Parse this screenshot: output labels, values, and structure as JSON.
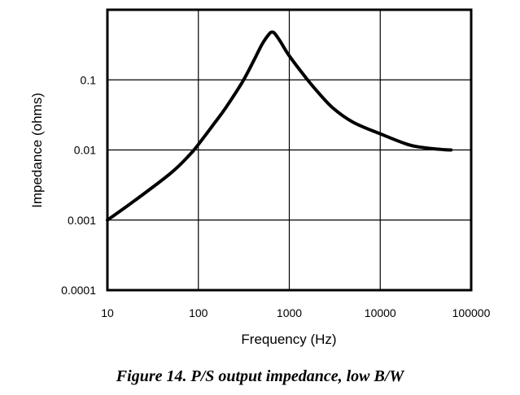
{
  "caption": "Figure 14. P/S output impedance, low B/W",
  "chart_data": {
    "type": "line",
    "xlabel": "Frequency (Hz)",
    "ylabel": "Impedance (ohms)",
    "xscale": "log",
    "yscale": "log",
    "xlim": [
      10,
      100000
    ],
    "ylim": [
      0.0001,
      1
    ],
    "grid": true,
    "x_ticks": [
      10,
      100,
      1000,
      10000,
      100000
    ],
    "x_tick_labels": [
      "10",
      "100",
      "1000",
      "10000",
      "100000"
    ],
    "y_ticks": [
      0.0001,
      0.001,
      0.01,
      0.1
    ],
    "y_tick_labels": [
      "0.0001",
      "0.001",
      "0.01",
      "0.1"
    ],
    "series": [
      {
        "x": [
          10,
          20,
          50,
          80,
          100,
          150,
          200,
          300,
          400,
          500,
          600,
          650,
          700,
          800,
          1000,
          1500,
          2000,
          3000,
          5000,
          10000,
          20000,
          30000,
          50000,
          60000
        ],
        "y": [
          0.001,
          0.0019,
          0.0047,
          0.0085,
          0.012,
          0.024,
          0.04,
          0.09,
          0.18,
          0.32,
          0.45,
          0.48,
          0.45,
          0.35,
          0.22,
          0.11,
          0.07,
          0.04,
          0.025,
          0.017,
          0.012,
          0.0108,
          0.0101,
          0.01
        ]
      }
    ]
  }
}
